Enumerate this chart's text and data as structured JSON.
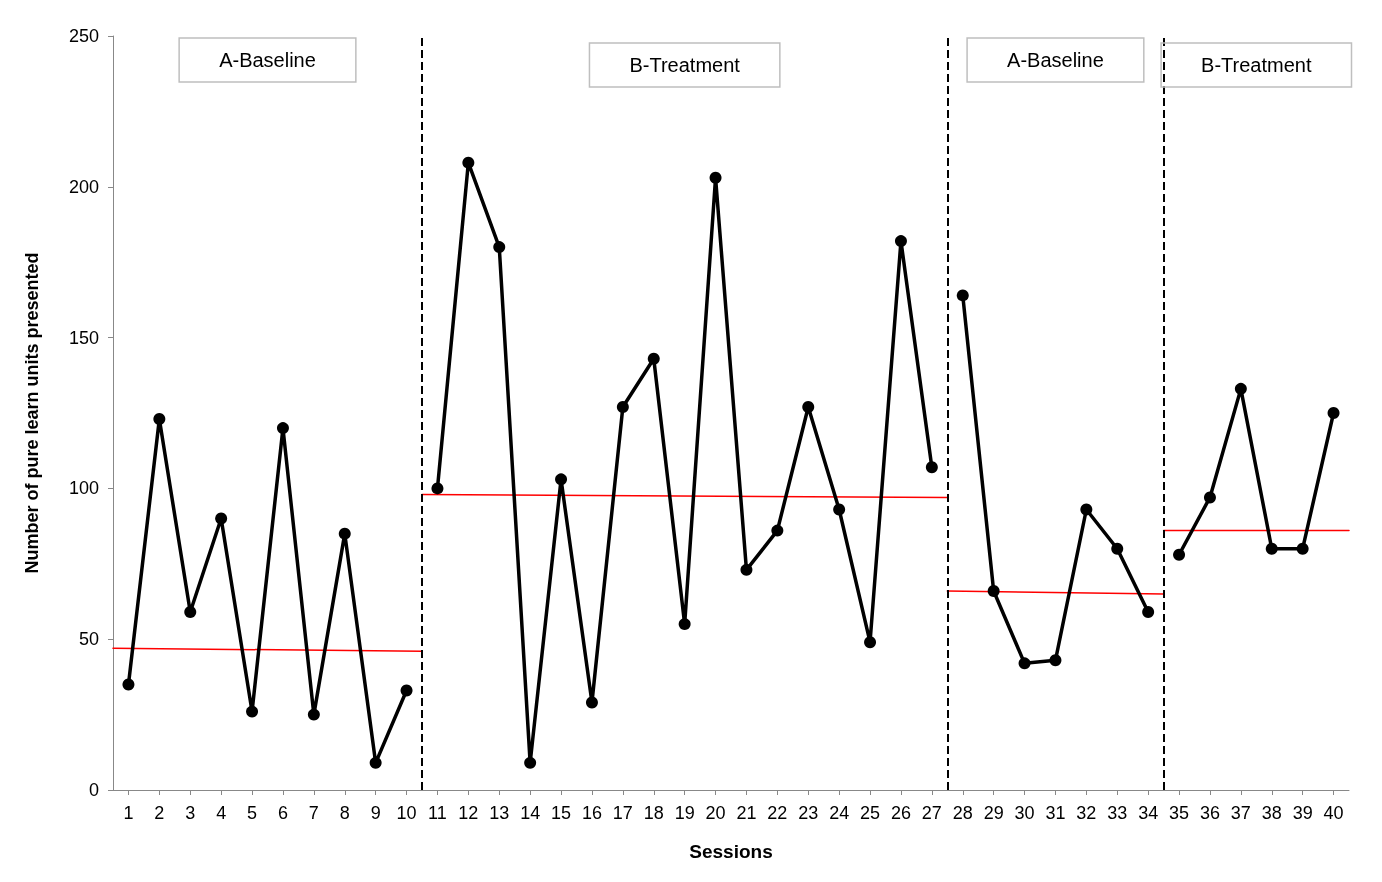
{
  "chart_data": {
    "type": "line",
    "xlabel": "Sessions",
    "ylabel": "Number of pure learn units presented",
    "xlim": [
      0.5,
      40.5
    ],
    "xticks": [
      1,
      2,
      3,
      4,
      5,
      6,
      7,
      8,
      9,
      10,
      11,
      12,
      13,
      14,
      15,
      16,
      17,
      18,
      19,
      20,
      21,
      22,
      23,
      24,
      25,
      26,
      27,
      28,
      29,
      30,
      31,
      32,
      33,
      34,
      35,
      36,
      37,
      38,
      39,
      40
    ],
    "ylim": [
      0,
      250
    ],
    "yticks": [
      0,
      50,
      100,
      150,
      200,
      250
    ],
    "grid": false,
    "marker": "circle",
    "line_style": "solid",
    "series": [
      {
        "color": "#000000",
        "x": [
          1,
          2,
          3,
          4,
          5,
          6,
          7,
          8,
          9,
          10
        ],
        "values": [
          35,
          123,
          59,
          90,
          26,
          120,
          25,
          85,
          9,
          33
        ]
      },
      {
        "color": "#000000",
        "x": [
          11,
          12,
          13,
          14,
          15,
          16,
          17,
          18,
          19,
          20,
          21,
          22,
          23,
          24,
          25,
          26,
          27
        ],
        "values": [
          100,
          208,
          180,
          9,
          103,
          29,
          127,
          143,
          55,
          203,
          73,
          86,
          127,
          93,
          49,
          182,
          107
        ]
      },
      {
        "color": "#000000",
        "x": [
          28,
          29,
          30,
          31,
          32,
          33,
          34
        ],
        "values": [
          164,
          66,
          42,
          43,
          93,
          80,
          59
        ]
      },
      {
        "color": "#000000",
        "x": [
          35,
          36,
          37,
          38,
          39,
          40
        ],
        "values": [
          78,
          97,
          133,
          80,
          80,
          125
        ]
      },
      {
        "color": "#ff0000",
        "marker": "none",
        "x": [
          0.5,
          10.5
        ],
        "values": [
          47,
          46
        ]
      },
      {
        "color": "#ff0000",
        "marker": "none",
        "x": [
          10.5,
          27.5
        ],
        "values": [
          98,
          97
        ]
      },
      {
        "color": "#ff0000",
        "marker": "none",
        "x": [
          27.5,
          34.5
        ],
        "values": [
          66,
          65
        ]
      },
      {
        "color": "#ff0000",
        "marker": "none",
        "x": [
          34.5,
          40.5
        ],
        "values": [
          86,
          86
        ]
      }
    ],
    "ref_lines": [
      {
        "axis": "x",
        "value": 10.5,
        "color": "#000000",
        "line_style": "dashed"
      },
      {
        "axis": "x",
        "value": 27.5,
        "color": "#000000",
        "line_style": "dashed"
      },
      {
        "axis": "x",
        "value": 34.5,
        "color": "#000000",
        "line_style": "dashed"
      }
    ],
    "annotations": [
      "A-Baseline",
      "B-Treatment",
      "A-Baseline",
      "B-Treatment"
    ]
  }
}
